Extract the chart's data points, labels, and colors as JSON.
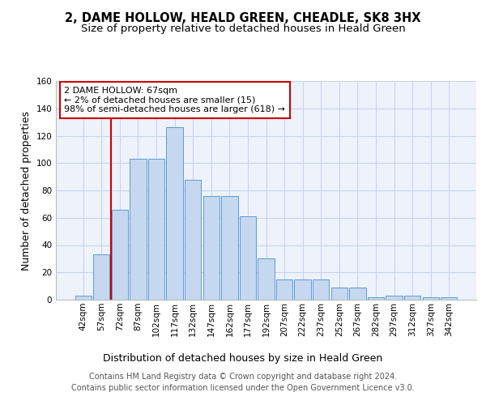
{
  "title": "2, DAME HOLLOW, HEALD GREEN, CHEADLE, SK8 3HX",
  "subtitle": "Size of property relative to detached houses in Heald Green",
  "xlabel": "Distribution of detached houses by size in Heald Green",
  "ylabel": "Number of detached properties",
  "categories": [
    "42sqm",
    "57sqm",
    "72sqm",
    "87sqm",
    "102sqm",
    "117sqm",
    "132sqm",
    "147sqm",
    "162sqm",
    "177sqm",
    "192sqm",
    "207sqm",
    "222sqm",
    "237sqm",
    "252sqm",
    "267sqm",
    "282sqm",
    "297sqm",
    "312sqm",
    "327sqm",
    "342sqm"
  ],
  "values": [
    3,
    33,
    66,
    103,
    103,
    126,
    88,
    76,
    76,
    61,
    30,
    15,
    15,
    15,
    9,
    9,
    2,
    3,
    3,
    2,
    2
  ],
  "bar_color": "#c5d8f0",
  "bar_edge_color": "#5b9bd5",
  "background_color": "#eef2fb",
  "grid_color": "#c8d4ee",
  "marker_color": "#cc0000",
  "annotation_text": "2 DAME HOLLOW: 67sqm\n← 2% of detached houses are smaller (15)\n98% of semi-detached houses are larger (618) →",
  "annotation_box_color": "#ffffff",
  "annotation_box_edge": "#cc0000",
  "footer_text": "Contains HM Land Registry data © Crown copyright and database right 2024.\nContains public sector information licensed under the Open Government Licence v3.0.",
  "ylim": [
    0,
    160
  ],
  "yticks": [
    0,
    20,
    40,
    60,
    80,
    100,
    120,
    140,
    160
  ],
  "title_fontsize": 10.5,
  "subtitle_fontsize": 9.5,
  "ylabel_fontsize": 9,
  "xlabel_fontsize": 9,
  "tick_fontsize": 7.5,
  "annotation_fontsize": 8,
  "footer_fontsize": 7
}
